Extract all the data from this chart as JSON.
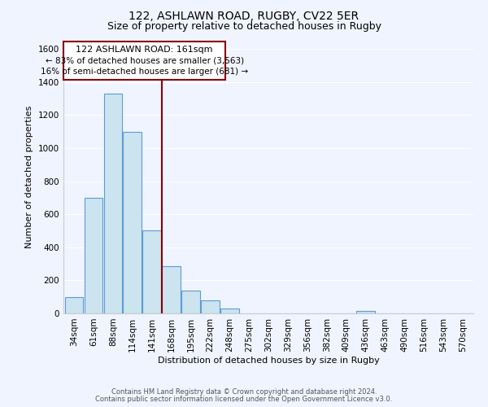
{
  "title": "122, ASHLAWN ROAD, RUGBY, CV22 5ER",
  "subtitle": "Size of property relative to detached houses in Rugby",
  "xlabel": "Distribution of detached houses by size in Rugby",
  "ylabel": "Number of detached properties",
  "bar_labels": [
    "34sqm",
    "61sqm",
    "88sqm",
    "114sqm",
    "141sqm",
    "168sqm",
    "195sqm",
    "222sqm",
    "248sqm",
    "275sqm",
    "302sqm",
    "329sqm",
    "356sqm",
    "382sqm",
    "409sqm",
    "436sqm",
    "463sqm",
    "490sqm",
    "516sqm",
    "543sqm",
    "570sqm"
  ],
  "bar_values": [
    100,
    700,
    1330,
    1100,
    500,
    285,
    140,
    80,
    30,
    0,
    0,
    0,
    0,
    0,
    0,
    15,
    0,
    0,
    0,
    0,
    0
  ],
  "bar_color": "#cce4f0",
  "bar_edge_color": "#5b9bd5",
  "property_line_color": "#8b0000",
  "ylim": [
    0,
    1650
  ],
  "yticks": [
    0,
    200,
    400,
    600,
    800,
    1000,
    1200,
    1400,
    1600
  ],
  "annotation_title": "122 ASHLAWN ROAD: 161sqm",
  "annotation_line1": "← 83% of detached houses are smaller (3,563)",
  "annotation_line2": "16% of semi-detached houses are larger (681) →",
  "footer1": "Contains HM Land Registry data © Crown copyright and database right 2024.",
  "footer2": "Contains public sector information licensed under the Open Government Licence v3.0.",
  "background_color": "#f0f4ff",
  "plot_bg_color": "#f0f4ff",
  "grid_color": "#ffffff",
  "title_fontsize": 10,
  "subtitle_fontsize": 9,
  "axis_label_fontsize": 8,
  "tick_fontsize": 7.5,
  "footer_fontsize": 6
}
